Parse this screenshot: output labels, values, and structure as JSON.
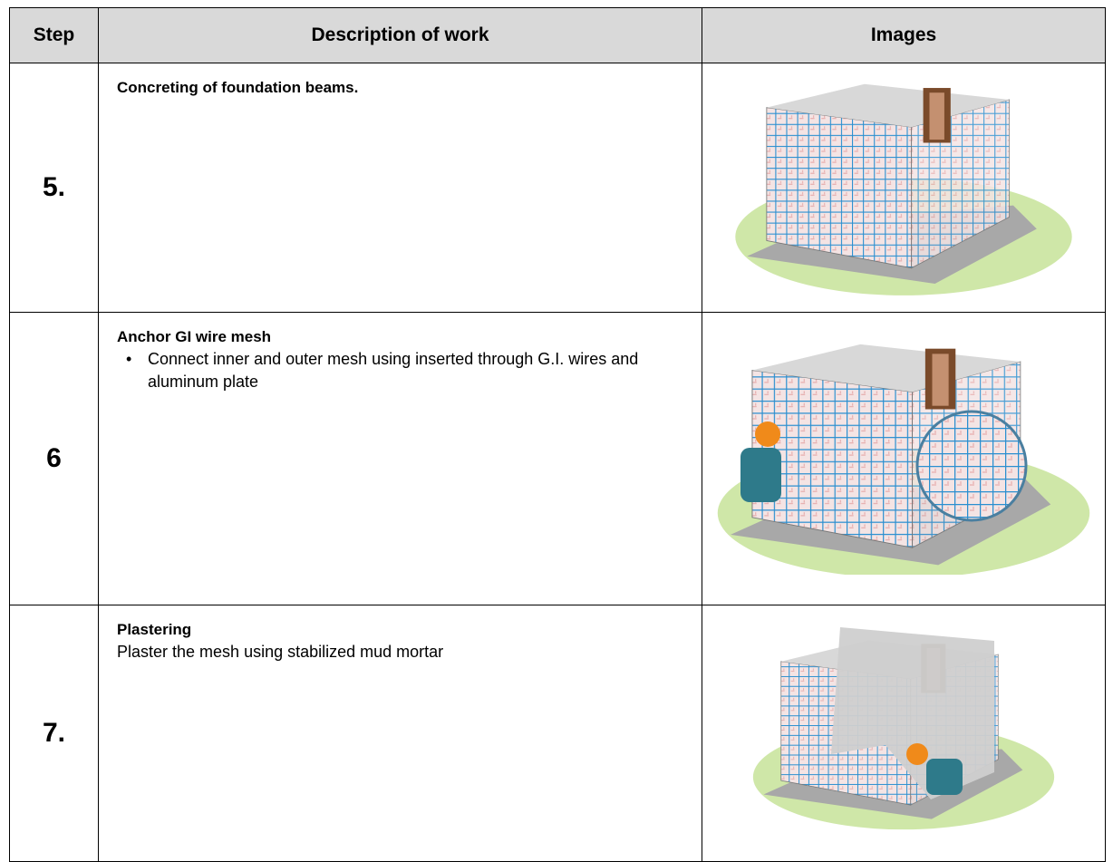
{
  "table": {
    "header": [
      "Step",
      "Description of work",
      "Images"
    ],
    "rows": [
      {
        "step": "5.",
        "title": "Concreting of foundation beams."
      },
      {
        "step": "6",
        "title": "Anchor GI wire mesh",
        "bullets": [
          "Connect inner and outer mesh  using inserted through G.I. wires and aluminum plate"
        ]
      },
      {
        "step": "7.",
        "title": "Plastering",
        "text": "Plaster the mesh using stabilized mud mortar"
      }
    ]
  }
}
